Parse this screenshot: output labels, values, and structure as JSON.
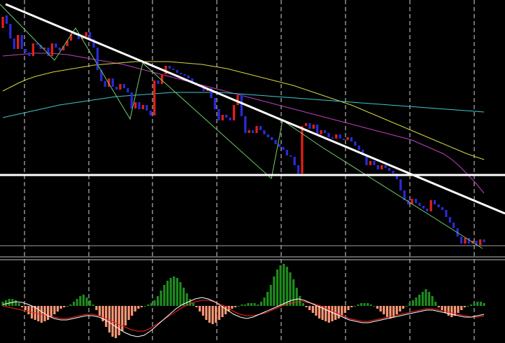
{
  "chart_data": [
    {
      "type": "candlestick",
      "panel": "price",
      "colors": {
        "bull": "#e0201a",
        "bear": "#2a2ad8",
        "background": "#000000",
        "grid": "#ffffff"
      },
      "grid": "vertical-dashed",
      "candles": [
        [
          40,
          60,
          20,
          24
        ],
        [
          22,
          42,
          5,
          34
        ],
        [
          34,
          60,
          30,
          55
        ],
        [
          55,
          75,
          50,
          70
        ],
        [
          70,
          95,
          45,
          50
        ],
        [
          50,
          75,
          45,
          70
        ],
        [
          70,
          85,
          65,
          75
        ],
        [
          75,
          90,
          70,
          80
        ],
        [
          80,
          82,
          60,
          62
        ],
        [
          62,
          70,
          55,
          64
        ],
        [
          64,
          80,
          60,
          70
        ],
        [
          70,
          78,
          62,
          68
        ],
        [
          68,
          84,
          64,
          80
        ],
        [
          80,
          86,
          60,
          62
        ],
        [
          62,
          72,
          55,
          68
        ],
        [
          68,
          76,
          60,
          72
        ],
        [
          72,
          80,
          64,
          66
        ],
        [
          66,
          70,
          55,
          58
        ],
        [
          58,
          64,
          45,
          48
        ],
        [
          48,
          56,
          38,
          50
        ],
        [
          50,
          58,
          42,
          56
        ],
        [
          56,
          62,
          48,
          52
        ],
        [
          52,
          60,
          44,
          46
        ],
        [
          46,
          58,
          38,
          56
        ],
        [
          56,
          72,
          50,
          68
        ],
        [
          68,
          110,
          62,
          100
        ],
        [
          100,
          122,
          92,
          116
        ],
        [
          116,
          130,
          108,
          124
        ],
        [
          124,
          132,
          110,
          112
        ],
        [
          112,
          126,
          104,
          124
        ],
        [
          124,
          135,
          115,
          128
        ],
        [
          128,
          134,
          118,
          120
        ],
        [
          120,
          130,
          112,
          126
        ],
        [
          126,
          138,
          120,
          132
        ],
        [
          132,
          160,
          125,
          155
        ],
        [
          155,
          168,
          140,
          146
        ],
        [
          146,
          160,
          138,
          156
        ],
        [
          156,
          166,
          142,
          150
        ],
        [
          150,
          162,
          140,
          158
        ],
        [
          158,
          170,
          148,
          165
        ],
        [
          165,
          168,
          110,
          115
        ],
        [
          115,
          128,
          105,
          120
        ],
        [
          120,
          130,
          100,
          106
        ],
        [
          106,
          112,
          90,
          94
        ],
        [
          94,
          102,
          88,
          98
        ],
        [
          98,
          104,
          92,
          100
        ],
        [
          100,
          108,
          94,
          104
        ],
        [
          104,
          110,
          96,
          106
        ],
        [
          106,
          112,
          98,
          108
        ],
        [
          108,
          116,
          102,
          112
        ],
        [
          112,
          122,
          106,
          118
        ],
        [
          118,
          126,
          110,
          120
        ],
        [
          120,
          128,
          110,
          124
        ],
        [
          124,
          134,
          118,
          130
        ],
        [
          130,
          136,
          120,
          126
        ],
        [
          126,
          146,
          120,
          140
        ],
        [
          140,
          160,
          132,
          156
        ],
        [
          156,
          178,
          150,
          172
        ],
        [
          172,
          180,
          160,
          164
        ],
        [
          164,
          172,
          152,
          168
        ],
        [
          168,
          176,
          160,
          172
        ],
        [
          172,
          200,
          140,
          150
        ],
        [
          150,
          162,
          130,
          136
        ],
        [
          136,
          170,
          130,
          166
        ],
        [
          166,
          196,
          160,
          190
        ],
        [
          190,
          200,
          178,
          186
        ],
        [
          186,
          196,
          180,
          190
        ],
        [
          190,
          196,
          176,
          180
        ],
        [
          180,
          190,
          172,
          186
        ],
        [
          186,
          194,
          180,
          192
        ],
        [
          192,
          200,
          186,
          196
        ],
        [
          196,
          204,
          188,
          200
        ],
        [
          200,
          210,
          194,
          206
        ],
        [
          206,
          214,
          200,
          210
        ],
        [
          210,
          220,
          202,
          214
        ],
        [
          214,
          226,
          206,
          222
        ],
        [
          222,
          232,
          210,
          224
        ],
        [
          224,
          240,
          216,
          236
        ],
        [
          236,
          250,
          230,
          248
        ],
        [
          248,
          254,
          176,
          180
        ],
        [
          180,
          190,
          172,
          176
        ],
        [
          176,
          186,
          170,
          184
        ],
        [
          184,
          190,
          176,
          178
        ],
        [
          178,
          194,
          170,
          192
        ],
        [
          192,
          198,
          184,
          186
        ],
        [
          186,
          192,
          180,
          190
        ],
        [
          190,
          200,
          184,
          196
        ],
        [
          196,
          202,
          188,
          198
        ],
        [
          198,
          208,
          190,
          192
        ],
        [
          192,
          202,
          186,
          198
        ],
        [
          198,
          206,
          186,
          200
        ],
        [
          200,
          210,
          192,
          196
        ],
        [
          196,
          206,
          190,
          202
        ],
        [
          202,
          212,
          196,
          208
        ],
        [
          208,
          218,
          200,
          214
        ],
        [
          214,
          226,
          206,
          222
        ],
        [
          222,
          240,
          216,
          236
        ],
        [
          236,
          244,
          226,
          230
        ],
        [
          230,
          240,
          222,
          236
        ],
        [
          236,
          246,
          228,
          242
        ],
        [
          242,
          248,
          234,
          236
        ],
        [
          236,
          246,
          228,
          240
        ],
        [
          240,
          250,
          232,
          244
        ],
        [
          244,
          254,
          236,
          248
        ],
        [
          248,
          260,
          240,
          256
        ],
        [
          256,
          276,
          250,
          272
        ],
        [
          272,
          290,
          266,
          286
        ],
        [
          286,
          300,
          276,
          292
        ],
        [
          292,
          302,
          280,
          284
        ],
        [
          284,
          296,
          278,
          290
        ],
        [
          290,
          300,
          282,
          294
        ],
        [
          294,
          304,
          286,
          298
        ],
        [
          298,
          306,
          290,
          302
        ],
        [
          302,
          310,
          282,
          286
        ],
        [
          286,
          296,
          280,
          292
        ],
        [
          292,
          300,
          284,
          296
        ],
        [
          296,
          306,
          288,
          300
        ],
        [
          300,
          314,
          294,
          310
        ],
        [
          310,
          322,
          302,
          318
        ],
        [
          318,
          330,
          310,
          326
        ],
        [
          326,
          340,
          318,
          338
        ],
        [
          338,
          352,
          330,
          348
        ],
        [
          348,
          356,
          336,
          340
        ],
        [
          340,
          352,
          334,
          348
        ],
        [
          348,
          356,
          338,
          344
        ],
        [
          344,
          352,
          336,
          350
        ],
        [
          350,
          354,
          338,
          342
        ],
        [
          342,
          352,
          334,
          346
        ]
      ],
      "moving_averages": [
        {
          "color": "#c040c0",
          "values": [
            80,
            79,
            78,
            77,
            76,
            76,
            76,
            77,
            78,
            80,
            82,
            84,
            86,
            88,
            90,
            92,
            95,
            98,
            101,
            104,
            107,
            110,
            113,
            116,
            119,
            122,
            125,
            128,
            131,
            134,
            137,
            140,
            143,
            146,
            149,
            152,
            155,
            158,
            161,
            164,
            167,
            170,
            173,
            176,
            179,
            182,
            185,
            188,
            191,
            194,
            197,
            200,
            205,
            210,
            215,
            220,
            228,
            238,
            250,
            262,
            276
          ]
        },
        {
          "color": "#d8d840",
          "values": [
            130,
            124,
            118,
            113,
            109,
            106,
            103,
            101,
            99,
            97,
            95,
            93,
            92,
            91,
            90,
            89,
            88,
            88,
            88,
            88,
            88,
            89,
            90,
            91,
            92,
            94,
            96,
            98,
            101,
            104,
            107,
            110,
            113,
            116,
            119,
            122,
            126,
            130,
            134,
            138,
            142,
            146,
            150,
            155,
            160,
            165,
            170,
            175,
            180,
            185,
            190,
            195,
            200,
            205,
            210,
            215,
            220,
            224,
            228
          ]
        },
        {
          "color": "#40c8d0",
          "values": [
            168,
            165,
            162,
            159,
            156,
            153,
            150,
            148,
            146,
            144,
            142,
            140,
            138,
            137,
            136,
            135,
            134,
            133,
            132,
            132,
            132,
            132,
            132,
            132,
            133,
            134,
            135,
            136,
            137,
            138,
            139,
            140,
            141,
            142,
            143,
            144,
            145,
            146,
            147,
            148,
            149,
            150,
            151,
            152,
            153,
            154,
            155,
            156,
            157,
            158,
            159,
            160
          ]
        }
      ],
      "zigzag": [
        [
          0,
          6
        ],
        [
          78,
          86
        ],
        [
          108,
          40
        ],
        [
          186,
          170
        ],
        [
          204,
          90
        ],
        [
          388,
          255
        ],
        [
          404,
          172
        ],
        [
          460,
          210
        ],
        [
          690,
          355
        ]
      ],
      "trendlines": [
        {
          "color": "#ffffff",
          "from": [
            8,
            6
          ],
          "to": [
            722,
            305
          ]
        },
        {
          "color": "#ffffff",
          "from": [
            0,
            250
          ],
          "to": [
            722,
            250
          ]
        }
      ],
      "horizontal_levels": [
        {
          "color": "#a0a0a0",
          "value": 351
        }
      ]
    },
    {
      "type": "histogram",
      "panel": "oscillator",
      "colors": {
        "positive": "#1e8c1e",
        "negative": "#ff9977",
        "signal": "#ff2020",
        "main": "#ffffff"
      },
      "zero_line": true,
      "histogram": [
        6,
        8,
        10,
        10,
        8,
        4,
        -2,
        -6,
        -12,
        -18,
        -20,
        -22,
        -24,
        -22,
        -20,
        -16,
        -12,
        -8,
        -4,
        -2,
        0,
        2,
        6,
        10,
        14,
        16,
        12,
        8,
        2,
        -6,
        -14,
        -22,
        -30,
        -38,
        -44,
        -46,
        -42,
        -36,
        -28,
        -20,
        -14,
        -8,
        -4,
        -2,
        0,
        2,
        4,
        8,
        14,
        22,
        30,
        36,
        40,
        42,
        40,
        34,
        26,
        18,
        10,
        4,
        -2,
        -8,
        -14,
        -20,
        -24,
        -26,
        -24,
        -20,
        -16,
        -12,
        -8,
        -4,
        -2,
        0,
        2,
        2,
        4,
        4,
        4,
        2,
        6,
        12,
        20,
        30,
        42,
        52,
        58,
        60,
        56,
        48,
        38,
        26,
        14,
        4,
        -2,
        -6,
        -10,
        -14,
        -18,
        -20,
        -22,
        -24,
        -22,
        -20,
        -18,
        -14,
        -10,
        -6,
        -2,
        0,
        2,
        4,
        4,
        4,
        2,
        0,
        -4,
        -8,
        -12,
        -16,
        -18,
        -16,
        -12,
        -8,
        -4,
        0,
        4,
        8,
        12,
        16,
        20,
        24,
        20,
        14,
        6,
        -2,
        -6,
        -10,
        -14,
        -16,
        -14,
        -10,
        -6,
        -2,
        0,
        2,
        4,
        6,
        6,
        4
      ],
      "main_line": [
        2,
        4,
        6,
        5,
        2,
        -2,
        -8,
        -14,
        -18,
        -20,
        -20,
        -18,
        -16,
        -14,
        -14,
        -16,
        -20,
        -26,
        -32,
        -38,
        -42,
        -44,
        -42,
        -36,
        -28,
        -20,
        -12,
        -4,
        2,
        6,
        10,
        12,
        10,
        6,
        0,
        -6,
        -12,
        -16,
        -18,
        -16,
        -12,
        -8,
        -4,
        0,
        4,
        8,
        10,
        8,
        4,
        0,
        -4,
        -8,
        -12,
        -16,
        -20,
        -22,
        -24,
        -24,
        -22,
        -20,
        -18,
        -16,
        -14,
        -12,
        -10,
        -8,
        -6,
        -6,
        -8,
        -10,
        -12,
        -14,
        -16,
        -16,
        -14,
        -12
      ],
      "signal_line": [
        0,
        -2,
        -4,
        -6,
        -8,
        -10,
        -12,
        -14,
        -16,
        -18,
        -18,
        -16,
        -14,
        -12,
        -12,
        -14,
        -18,
        -22,
        -26,
        -30,
        -34,
        -36,
        -36,
        -32,
        -26,
        -20,
        -14,
        -8,
        -2,
        2,
        6,
        8,
        8,
        6,
        2,
        -2,
        -8,
        -12,
        -14,
        -14,
        -12,
        -10,
        -6,
        -2,
        2,
        4,
        6,
        6,
        4,
        2,
        -2,
        -6,
        -10,
        -14,
        -18,
        -20,
        -22,
        -22,
        -20,
        -18,
        -16,
        -14,
        -12,
        -10,
        -8,
        -6,
        -4,
        -4,
        -6,
        -8,
        -10,
        -12,
        -14,
        -16,
        -16,
        -14
      ]
    }
  ]
}
